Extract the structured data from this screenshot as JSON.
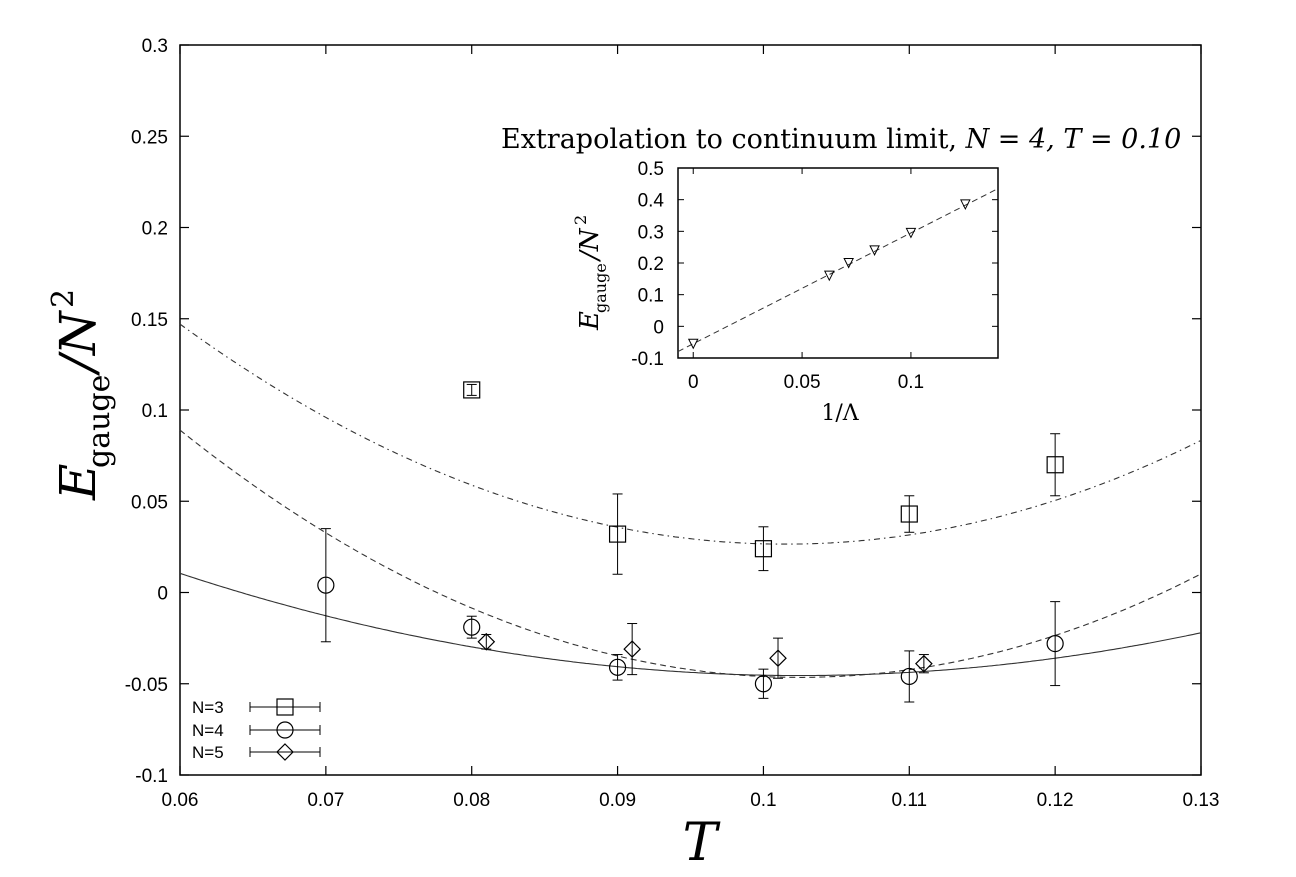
{
  "chart_data": [
    {
      "type": "scatter",
      "xlabel": "T",
      "ylabel": "E_gauge/N^2",
      "xlim": [
        0.06,
        0.13
      ],
      "ylim": [
        -0.1,
        0.3
      ],
      "x_ticks": [
        "0.06",
        "0.07",
        "0.08",
        "0.09",
        "0.1",
        "0.11",
        "0.12",
        "0.13"
      ],
      "y_ticks": [
        "0.3",
        "0.25",
        "0.2",
        "0.15",
        "0.1",
        "0.05",
        "0",
        "-0.05",
        "-0.1"
      ],
      "legend_position": "bottom-left",
      "series": [
        {
          "name": "N=3",
          "marker": "square",
          "fit_style": "dash-dot",
          "points": [
            {
              "x": 0.08,
              "y": 0.111,
              "err": 0.003
            },
            {
              "x": 0.09,
              "y": 0.032,
              "err": 0.022
            },
            {
              "x": 0.1,
              "y": 0.024,
              "err": 0.012
            },
            {
              "x": 0.11,
              "y": 0.043,
              "err": 0.01
            },
            {
              "x": 0.12,
              "y": 0.07,
              "err": 0.017
            }
          ]
        },
        {
          "name": "N=4",
          "marker": "circle",
          "fit_style": "dashed",
          "points": [
            {
              "x": 0.07,
              "y": 0.004,
              "err": 0.031
            },
            {
              "x": 0.08,
              "y": -0.019,
              "err": 0.006
            },
            {
              "x": 0.09,
              "y": -0.041,
              "err": 0.007
            },
            {
              "x": 0.1,
              "y": -0.05,
              "err": 0.008
            },
            {
              "x": 0.11,
              "y": -0.046,
              "err": 0.014
            },
            {
              "x": 0.12,
              "y": -0.028,
              "err": 0.023
            }
          ]
        },
        {
          "name": "N=5",
          "marker": "diamond",
          "fit_style": "solid",
          "points": [
            {
              "x": 0.081,
              "y": -0.027,
              "err": 0.004
            },
            {
              "x": 0.091,
              "y": -0.031,
              "err": 0.014
            },
            {
              "x": 0.101,
              "y": -0.036,
              "err": 0.011
            },
            {
              "x": 0.111,
              "y": -0.039,
              "err": 0.005
            }
          ]
        }
      ],
      "fit_curves": [
        {
          "series": "N=3",
          "coeffs": [
            0.0265,
            0.1015,
            70
          ]
        },
        {
          "series": "N=4",
          "coeffs": [
            -0.0465,
            0.1025,
            75
          ]
        },
        {
          "series": "N=5",
          "coeffs": [
            -0.0455,
            0.1025,
            31
          ]
        }
      ]
    },
    {
      "type": "scatter",
      "title": "Extrapolation to continuum limit, N = 4, T = 0.10",
      "xlabel": "1/Λ",
      "ylabel": "E_gauge/N^2",
      "xlim": [
        -0.007,
        0.14
      ],
      "ylim": [
        -0.1,
        0.5
      ],
      "x_ticks": [
        "0",
        "0.05",
        "0.1"
      ],
      "y_ticks": [
        "0.5",
        "0.4",
        "0.3",
        "0.2",
        "0.1",
        "0",
        "-0.1"
      ],
      "marker": "triangle-down",
      "points": [
        {
          "x": 0.0,
          "y": -0.055
        },
        {
          "x": 0.0625,
          "y": 0.16
        },
        {
          "x": 0.0714,
          "y": 0.2
        },
        {
          "x": 0.0833,
          "y": 0.24
        },
        {
          "x": 0.1,
          "y": 0.295
        },
        {
          "x": 0.125,
          "y": 0.385
        }
      ],
      "fit_line": {
        "intercept": -0.055,
        "slope": 3.5
      }
    }
  ],
  "text": {
    "main_ylabel_base": "E",
    "main_ylabel_sub": "gauge",
    "main_ylabel_rest": "/N",
    "main_ylabel_sup": "2",
    "main_xlabel": "T",
    "inset_title_text": "Extrapolation to continuum limit, ",
    "inset_title_math": "N = 4, T = 0.10",
    "inset_xlabel": "1/Λ",
    "inset_ylabel_base": "E",
    "inset_ylabel_sub": "gauge",
    "inset_ylabel_rest": "/N",
    "inset_ylabel_sup": "2",
    "legend": [
      "N=3",
      "N=4",
      "N=5"
    ]
  }
}
